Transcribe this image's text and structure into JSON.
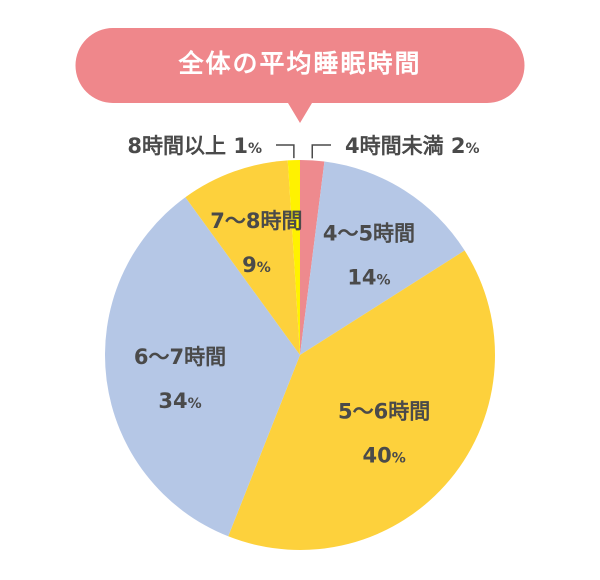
{
  "chart_data": {
    "type": "pie",
    "title": "全体の平均睡眠時間",
    "categories": [
      "4時間未満",
      "4～5時間",
      "5～6時間",
      "6～7時間",
      "7～8時間",
      "8時間以上"
    ],
    "values": [
      2,
      14,
      40,
      34,
      9,
      1
    ],
    "value_suffix": "%",
    "colors": [
      "#ee8a8e",
      "#b5c7e6",
      "#fdd13c",
      "#b5c7e6",
      "#fdd13c",
      "#fff200"
    ],
    "title_color": "#ef878b",
    "label_color": "#4a4a4a"
  }
}
